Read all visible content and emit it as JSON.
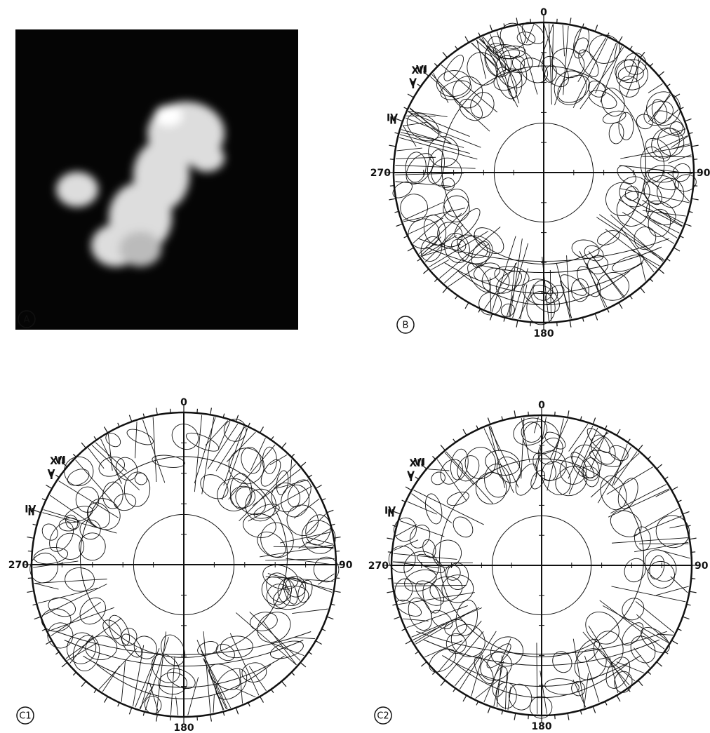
{
  "panels": [
    {
      "label": "A"
    },
    {
      "label": "B",
      "directions": {
        "top": "0",
        "right": "90",
        "bottom": "180",
        "left": "270"
      },
      "hours": [
        "VI",
        "V",
        "IV",
        "II",
        "I",
        "XII"
      ]
    },
    {
      "label": "C1",
      "directions": {
        "top": "0",
        "right": "90",
        "bottom": "180",
        "left": "270"
      },
      "hours": [
        "VI",
        "V",
        "IV",
        "II",
        "I",
        "XII"
      ]
    },
    {
      "label": "C2",
      "directions": {
        "top": "0",
        "right": "90",
        "bottom": "180",
        "left": "270"
      },
      "hours": [
        "VI",
        "V",
        "IV",
        "II",
        "I",
        "XII"
      ]
    }
  ]
}
